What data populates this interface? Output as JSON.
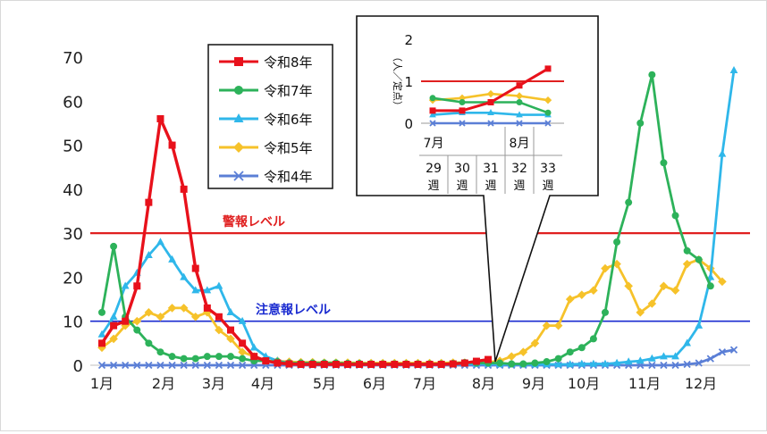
{
  "chart_data": {
    "type": "line",
    "x_labels": [
      "1月",
      "2月",
      "3月",
      "4月",
      "5月",
      "6月",
      "7月",
      "8月",
      "9月",
      "10月",
      "11月",
      "12月"
    ],
    "y_ticks": [
      0,
      10,
      20,
      30,
      40,
      50,
      60,
      70
    ],
    "ylim": [
      0,
      70
    ],
    "grid": false,
    "legend_position": "top-center",
    "thresholds": [
      {
        "label": "警報レベル",
        "value": 30,
        "color": "#e02020"
      },
      {
        "label": "注意報レベル",
        "value": 10,
        "color": "#1a2bd0"
      }
    ],
    "series": [
      {
        "name": "令和8年",
        "color": "#e8111b",
        "marker": "square",
        "values": [
          5,
          9,
          10,
          18,
          37,
          56,
          50,
          40,
          22,
          13,
          11,
          8,
          5,
          2,
          1,
          0.5,
          0.3,
          0.2,
          0.2,
          0.2,
          0.2,
          0.2,
          0.2,
          0.2,
          0.2,
          0.2,
          0.2,
          0.2,
          0.2,
          0.2,
          0.3,
          0.5,
          0.9,
          1.3
        ]
      },
      {
        "name": "令和7年",
        "color": "#2db25a",
        "marker": "circle",
        "values": [
          12,
          27,
          11,
          8,
          5,
          3,
          2,
          1.5,
          1.5,
          2,
          2,
          2,
          1.5,
          1,
          1,
          0.8,
          0.5,
          0.5,
          0.5,
          0.5,
          0.5,
          0.4,
          0.4,
          0.3,
          0.3,
          0.3,
          0.3,
          0.3,
          0.3,
          0.3,
          0.4,
          0.6,
          0.5,
          0.5,
          0.5,
          0.3,
          0.3,
          0.5,
          0.8,
          1.5,
          3,
          4,
          6,
          12,
          28,
          37,
          55,
          66,
          46,
          34,
          26,
          24,
          18
        ]
      },
      {
        "name": "令和6年",
        "color": "#2fb7ea",
        "marker": "triangle",
        "values": [
          7,
          11,
          18,
          21,
          25,
          28,
          24,
          20,
          17,
          17,
          18,
          12,
          10,
          4,
          2,
          1,
          0.5,
          0.3,
          0.3,
          0.3,
          0.3,
          0.2,
          0.2,
          0.2,
          0.2,
          0.2,
          0.2,
          0.2,
          0.2,
          0.2,
          0.2,
          0.3,
          0.3,
          0.3,
          0.2,
          0.2,
          0.2,
          0.2,
          0.2,
          0.2,
          0.2,
          0.3,
          0.3,
          0.3,
          0.5,
          0.8,
          1,
          1.5,
          2,
          2,
          5,
          9,
          20,
          48,
          67
        ]
      },
      {
        "name": "令和5年",
        "color": "#f6c22a",
        "marker": "diamond",
        "values": [
          4,
          6,
          9,
          10,
          12,
          11,
          13,
          13,
          11,
          12,
          8,
          6,
          3,
          2,
          1,
          1,
          0.8,
          0.7,
          0.7,
          0.6,
          0.6,
          0.6,
          0.5,
          0.5,
          0.5,
          0.5,
          0.5,
          0.5,
          0.5,
          0.5,
          0.6,
          0.6,
          0.7,
          0.7,
          1,
          2,
          3,
          5,
          9,
          9,
          15,
          16,
          17,
          22,
          23,
          18,
          12,
          14,
          18,
          17,
          23,
          24,
          22,
          19
        ]
      },
      {
        "name": "令和4年",
        "color": "#5b7fd6",
        "marker": "x",
        "values": [
          0,
          0,
          0,
          0,
          0,
          0,
          0,
          0,
          0,
          0,
          0,
          0,
          0,
          0,
          0,
          0,
          0,
          0,
          0,
          0,
          0,
          0,
          0,
          0,
          0,
          0,
          0,
          0,
          0,
          0,
          0,
          0,
          0,
          0,
          0,
          0,
          0,
          0,
          0,
          0,
          0,
          0,
          0,
          0,
          0,
          0,
          0,
          0,
          0,
          0,
          0.2,
          0.5,
          1.5,
          3,
          3.5
        ]
      }
    ],
    "inset": {
      "type": "line",
      "y_unit": "（人／定点）",
      "y_ticks": [
        0,
        1,
        2
      ],
      "ylim": [
        0,
        2
      ],
      "month_labels": [
        "7月",
        "8月"
      ],
      "week_numbers": [
        "29",
        "30",
        "31",
        "32",
        "33"
      ],
      "week_unit": "週",
      "threshold": 1,
      "series": [
        {
          "name": "令和8年",
          "values": [
            0.3,
            0.3,
            0.5,
            0.9,
            1.3
          ]
        },
        {
          "name": "令和7年",
          "values": [
            0.6,
            0.5,
            0.5,
            0.5,
            0.25
          ]
        },
        {
          "name": "令和6年",
          "values": [
            0.2,
            0.25,
            0.25,
            0.2,
            0.2
          ]
        },
        {
          "name": "令和5年",
          "values": [
            0.55,
            0.6,
            0.7,
            0.65,
            0.55
          ]
        },
        {
          "name": "令和4年",
          "values": [
            0,
            0,
            0,
            0,
            0
          ]
        }
      ]
    }
  }
}
